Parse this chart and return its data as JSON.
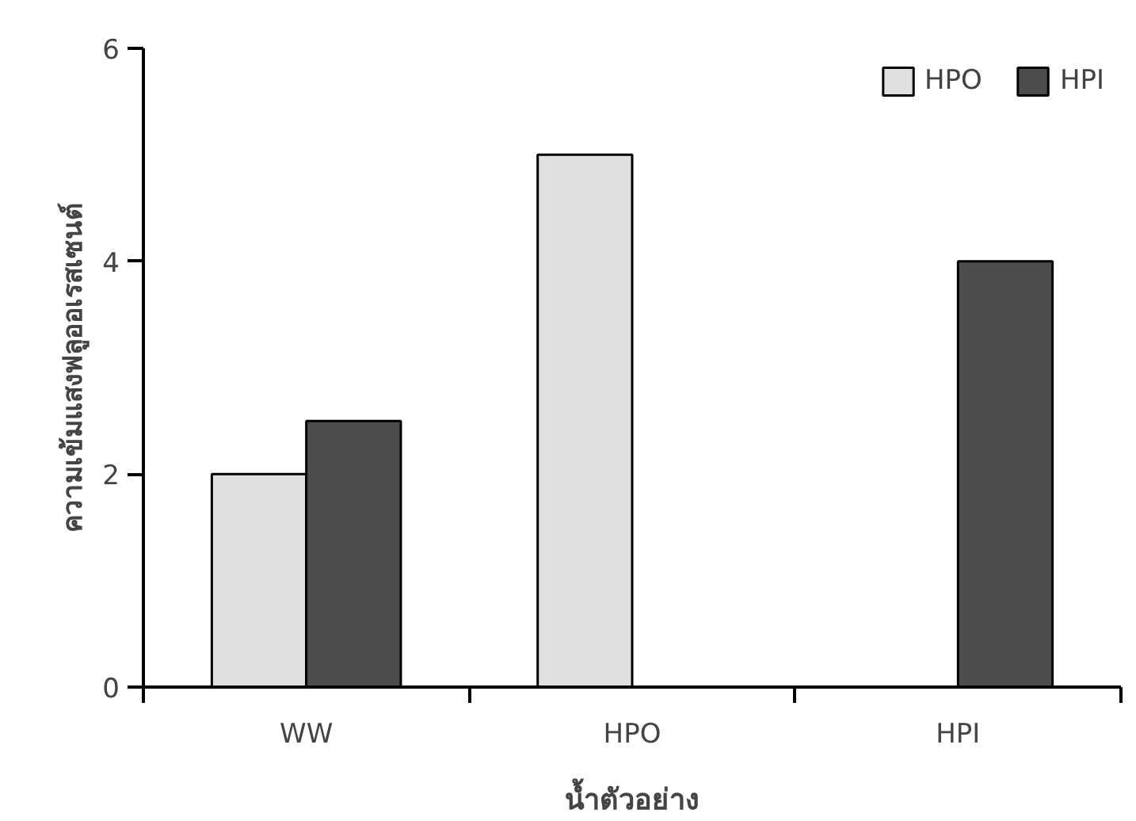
{
  "chart_data": {
    "type": "bar",
    "xlabel": "น้ำตัวอย่าง",
    "ylabel": "ความเข้มแสงฟลูออเรสเซนต์",
    "categories": [
      "WW",
      "HPO",
      "HPI"
    ],
    "series": [
      {
        "name": "HPO",
        "color": "#e0e0e0",
        "values": [
          2,
          5,
          null
        ]
      },
      {
        "name": "HPI",
        "color": "#4d4d4d",
        "values": [
          2.5,
          null,
          4
        ]
      }
    ],
    "ylim": [
      0,
      6
    ],
    "yticks": [
      0,
      2,
      4,
      6
    ],
    "grid": false,
    "legend": "top right"
  }
}
